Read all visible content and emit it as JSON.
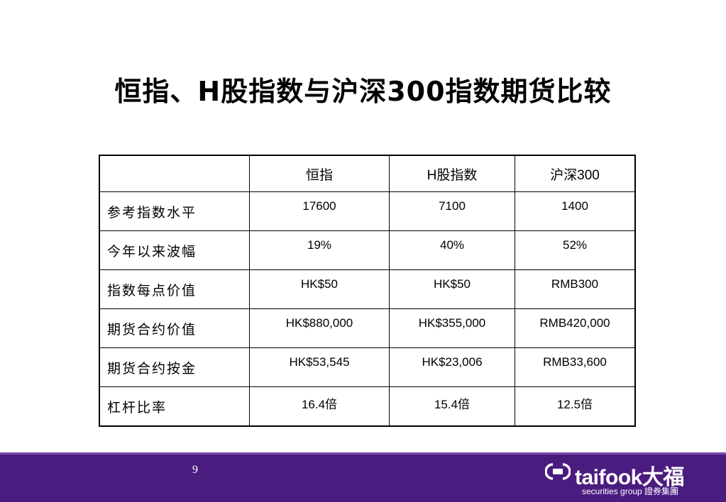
{
  "slide": {
    "title": "恒指、H股指数与沪深300指数期货比较",
    "page_number": "9"
  },
  "table": {
    "headers": [
      "",
      "恒指",
      "H股指数",
      "沪深300"
    ],
    "rows": [
      {
        "label": "参考指数水平",
        "values": [
          "17600",
          "7100",
          "1400"
        ]
      },
      {
        "label": "今年以来波幅",
        "values": [
          "19%",
          "40%",
          "52%"
        ]
      },
      {
        "label": "指数每点价值",
        "values": [
          "HK$50",
          "HK$50",
          "RMB300"
        ]
      },
      {
        "label": "期货合约价值",
        "values": [
          "HK$880,000",
          "HK$355,000",
          "RMB420,000"
        ]
      },
      {
        "label": "期货合约按金",
        "values": [
          "HK$53,545",
          "HK$23,006",
          "RMB33,600"
        ]
      },
      {
        "label": "杠杆比率",
        "values": [
          "16.4倍",
          "15.4倍",
          "12.5倍"
        ]
      }
    ]
  },
  "footer": {
    "logo_text": "taifook大福",
    "logo_subtext": "securities group 證券集團",
    "logo_icon": "taifook-logo-icon",
    "background_color": "#4b1c80"
  }
}
